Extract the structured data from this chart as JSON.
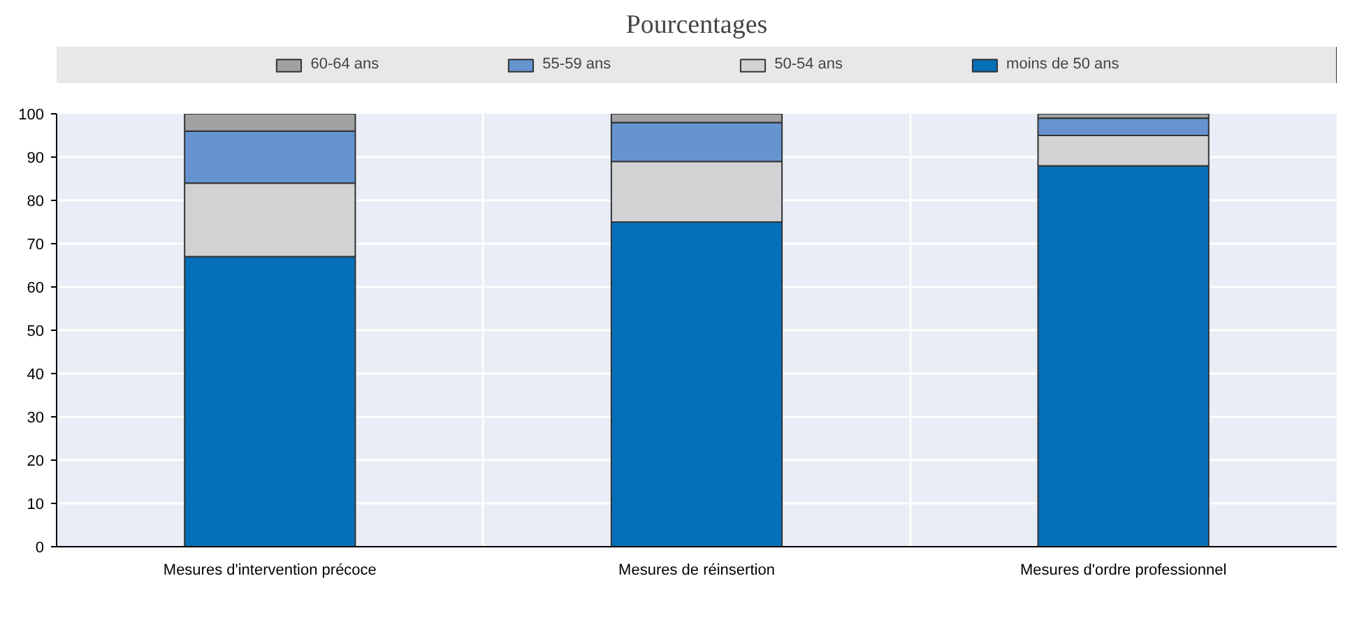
{
  "chart_data": {
    "type": "bar",
    "title": "Pourcentages",
    "stacked": true,
    "categories": [
      "Mesures d'intervention précoce",
      "Mesures de réinsertion",
      "Mesures d'ordre professionnel"
    ],
    "series": [
      {
        "name": "moins de 50 ans",
        "color": "#0570b9",
        "values": [
          67,
          75,
          88
        ]
      },
      {
        "name": "50-54 ans",
        "color": "#d0d2d4",
        "values": [
          17,
          14,
          7
        ]
      },
      {
        "name": "55-59 ans",
        "color": "#6694d0",
        "values": [
          12,
          9,
          4
        ]
      },
      {
        "name": "60-64 ans",
        "color": "#a0a1a3",
        "values": [
          4,
          2,
          1
        ]
      }
    ],
    "ylim": [
      0,
      100
    ],
    "yticks": [
      0,
      10,
      20,
      30,
      40,
      50,
      60,
      70,
      80,
      90,
      100
    ],
    "grid": true,
    "legend": "top"
  }
}
